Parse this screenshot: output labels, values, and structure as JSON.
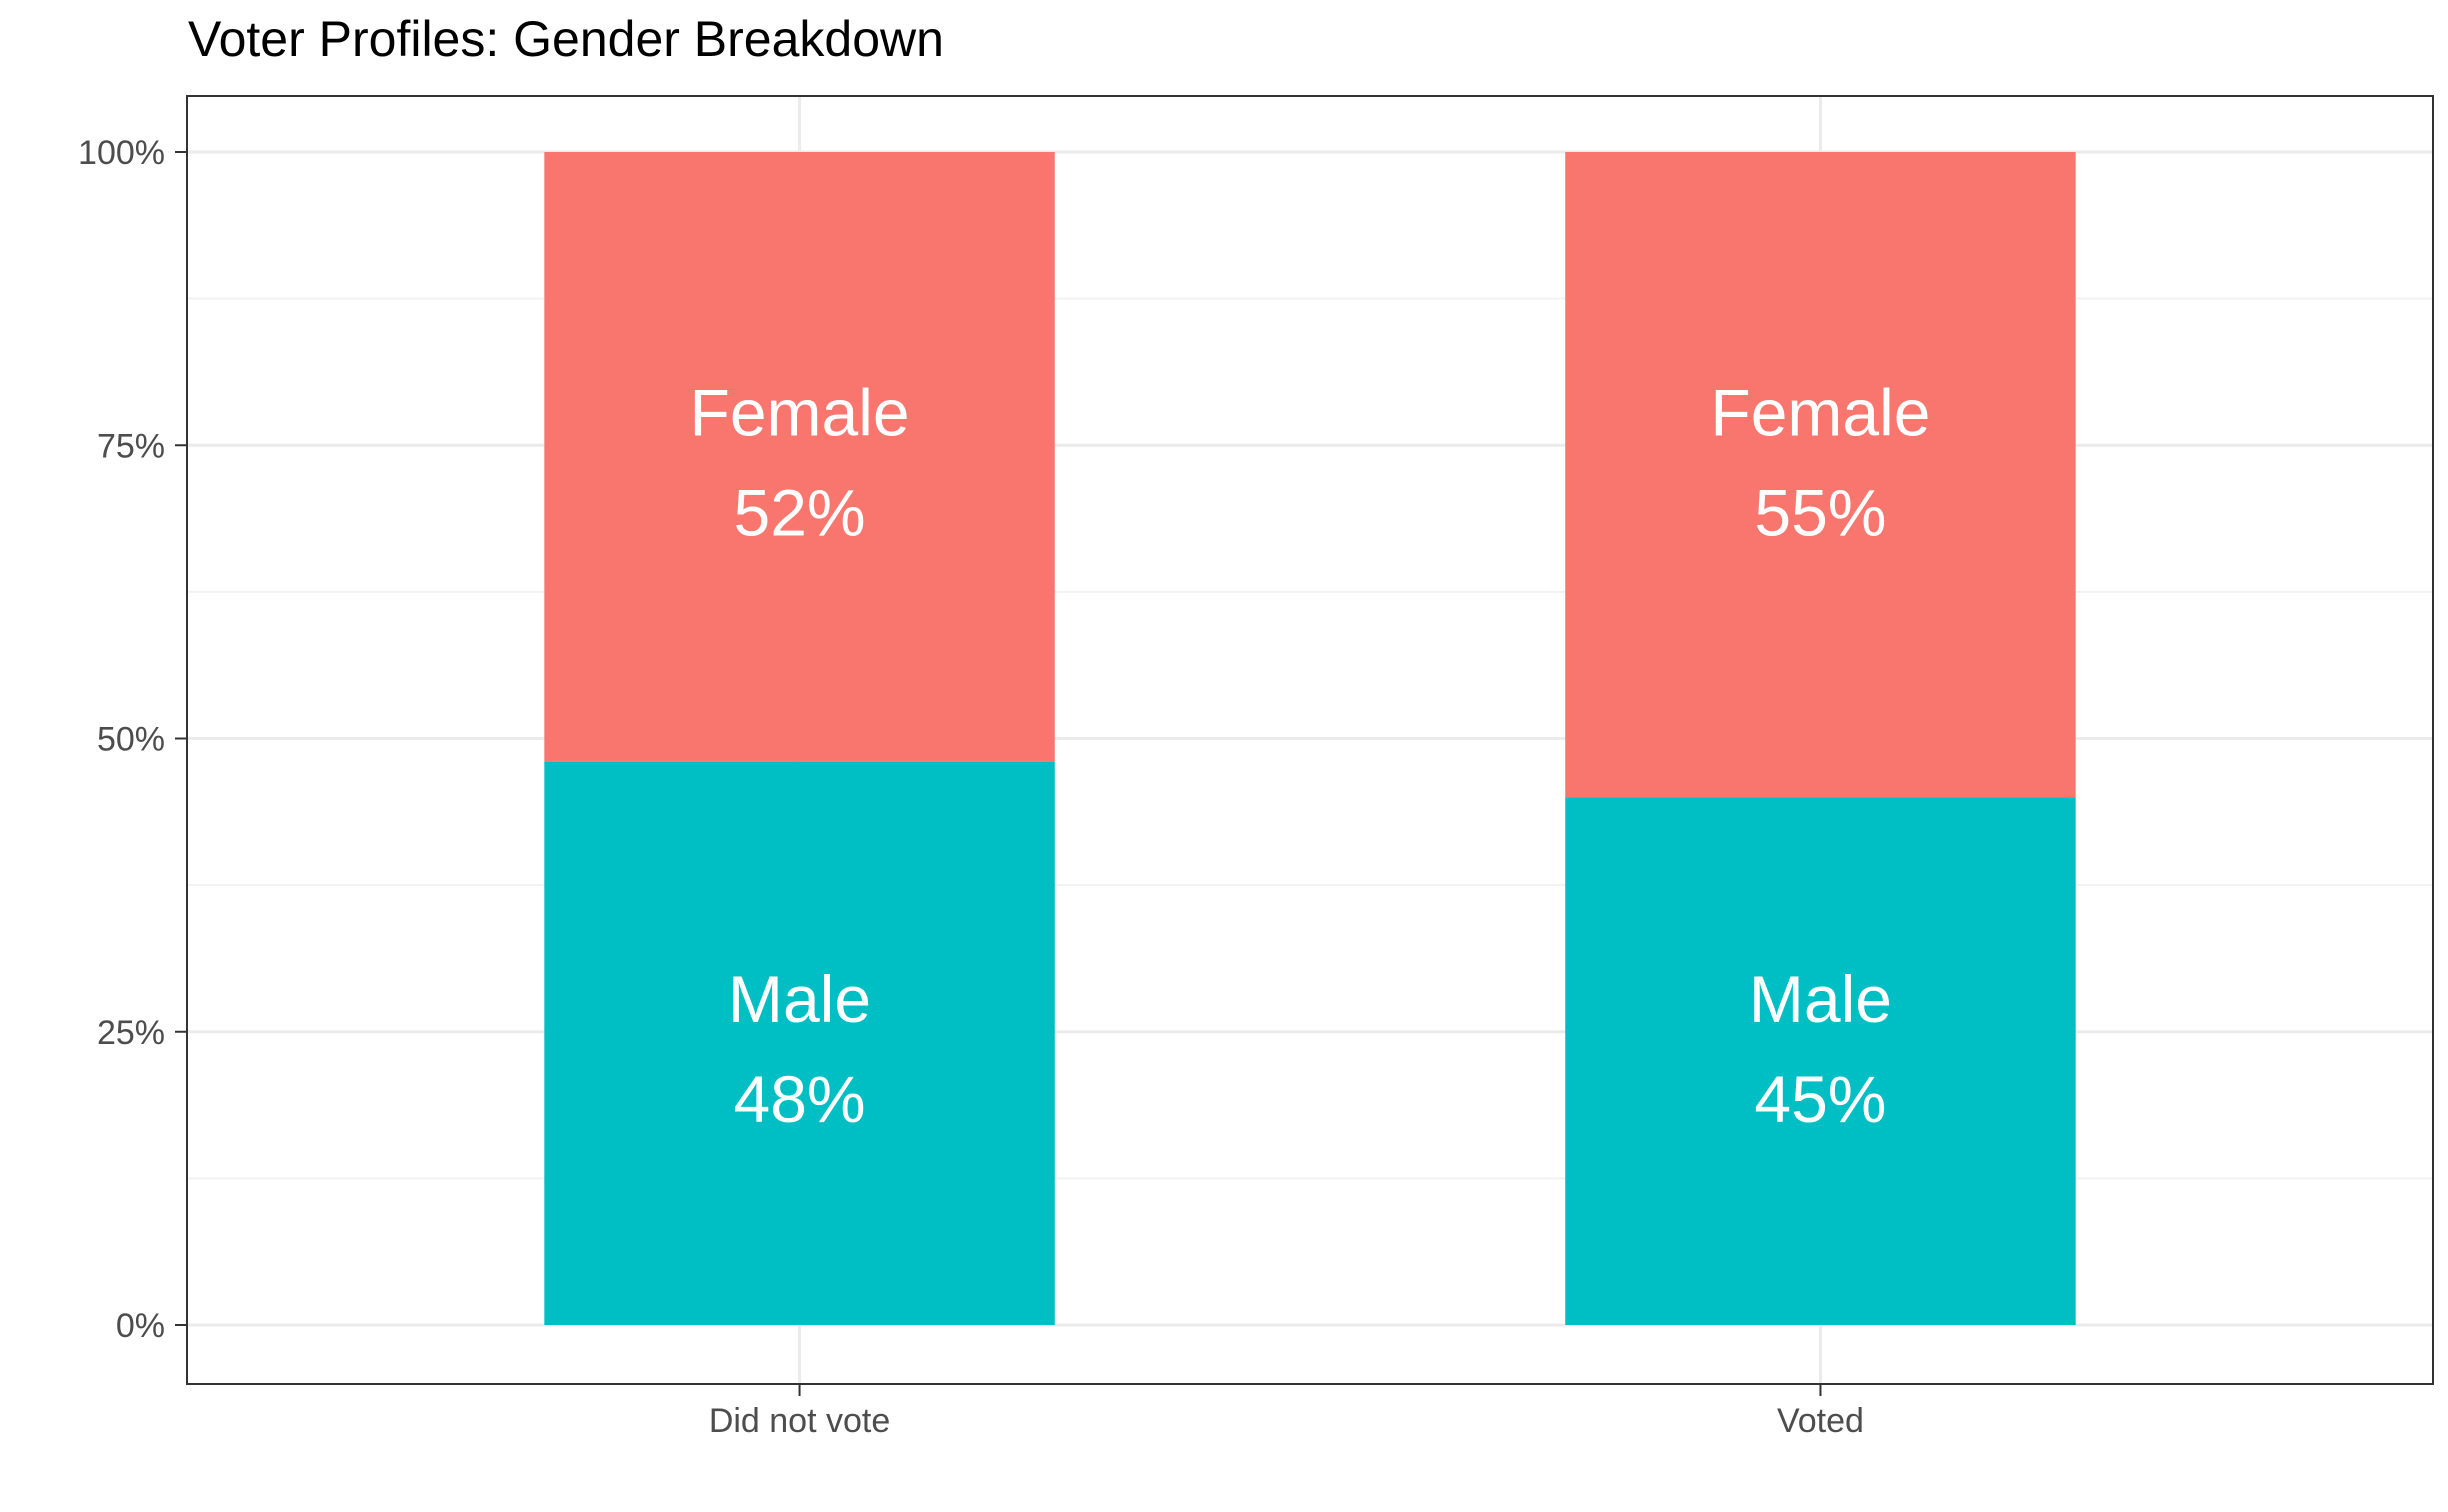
{
  "chart_data": {
    "type": "bar",
    "stacked": true,
    "title": "Voter Profiles: Gender Breakdown",
    "xlabel": "",
    "ylabel": "",
    "categories": [
      "Did not vote",
      "Voted"
    ],
    "series": [
      {
        "name": "Male",
        "values": [
          48,
          45
        ],
        "labels": [
          "48%",
          "45%"
        ],
        "color": "#00BFC4"
      },
      {
        "name": "Female",
        "values": [
          52,
          55
        ],
        "labels": [
          "52%",
          "55%"
        ],
        "color": "#F8766D"
      }
    ],
    "ylim": [
      0,
      100
    ],
    "yticks": [
      0,
      25,
      50,
      75,
      100
    ],
    "ytick_labels": [
      "0%",
      "25%",
      "50%",
      "75%",
      "100%"
    ],
    "grid": true,
    "legend": "none",
    "colors": {
      "grid_major": "#ebebeb",
      "grid_minor": "#f2f2f2",
      "border": "#333333",
      "tick_text": "#4d4d4d",
      "label_text": "#ffffff"
    }
  }
}
